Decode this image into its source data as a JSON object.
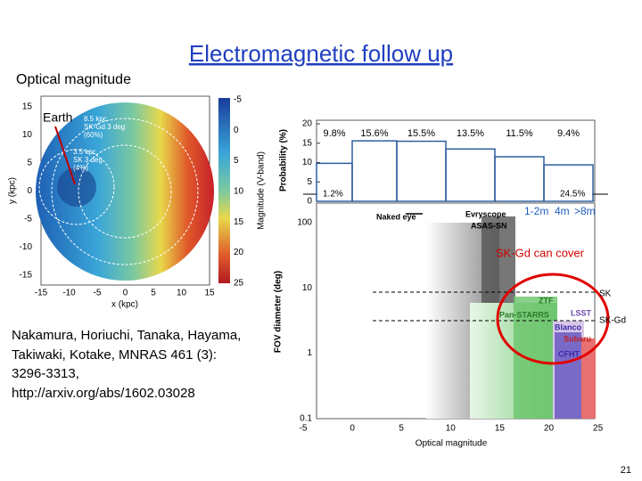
{
  "title": "Electromagnetic follow up",
  "left_label": "Optical magnitude",
  "earth_label": "Earth",
  "citation": [
    "Nakamura, Horiuchi, Tanaka, Hayama,",
    "Takiwaki, Kotake, MNRAS 461 (3):",
    "3296-3313,",
    "http://arxiv.org/abs/1602.03028"
  ],
  "note": "SK-Gd can cover",
  "page_number": "21",
  "map_figure": {
    "x_label": "x (kpc)",
    "y_label": "y (kpc)",
    "colorbar_label": "Magnitude (V-band)",
    "x_ticks": [
      "-15",
      "-10",
      "-5",
      "0",
      "5",
      "10",
      "15"
    ],
    "y_ticks": [
      "15",
      "10",
      "5",
      "0",
      "-5",
      "-10",
      "-15"
    ],
    "colorbar_ticks": [
      "-5",
      "0",
      "5",
      "10",
      "15",
      "20",
      "25"
    ],
    "annotations": [
      "8.5 kpc",
      "SK-Gd 3 deg",
      "(60%)",
      "3.5 kpc",
      "SK 3 deg",
      "(4%)"
    ]
  },
  "probability_chart": {
    "y_label": "Probability (%)",
    "yticks": [
      20,
      15,
      10,
      5,
      0
    ],
    "values": [
      9.8,
      15.6,
      15.5,
      13.5,
      11.5,
      9.4
    ],
    "value_labels": [
      "9.8%",
      "15.6%",
      "15.5%",
      "13.5%",
      "11.5%",
      "9.4%"
    ],
    "overflow_labels": [
      "1.2%",
      "24.5%"
    ]
  },
  "fov_chart": {
    "y_label": "FOV diameter (deg)",
    "x_label": "Optical magnitude",
    "y_ticks": [
      "100",
      "10",
      "1",
      "0.1"
    ],
    "x_ticks": [
      "-5",
      "0",
      "5",
      "10",
      "15",
      "20",
      "25"
    ],
    "labels": {
      "naked_eye": "Naked eye",
      "evryscope": "Evryscope",
      "asas_sn": "ASAS-SN",
      "small": "1-2m",
      "medium": "4m",
      "large": ">8m",
      "ztf": "ZTF",
      "pan_starrs": "Pan-STARRS",
      "lsst": "LSST",
      "blanco": "Blanco",
      "subaru": "Subaru",
      "cfht": "CFHT",
      "sk": "SK",
      "sk_gd": "SK-Gd"
    }
  }
}
